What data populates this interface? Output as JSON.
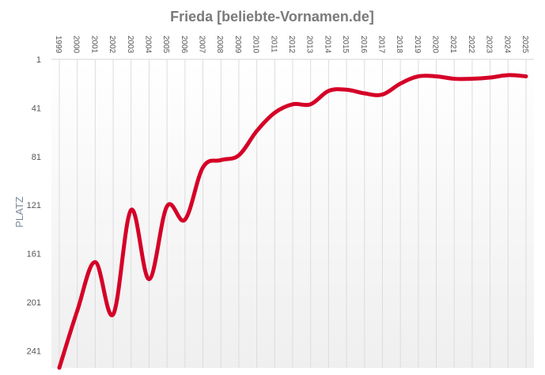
{
  "chart_data": {
    "type": "line",
    "title": "Frieda [beliebte-Vornamen.de]",
    "ylabel": "PLATZ",
    "xlabel": "",
    "x": [
      1999,
      2000,
      2001,
      2002,
      2003,
      2004,
      2005,
      2006,
      2007,
      2008,
      2009,
      2010,
      2011,
      2012,
      2013,
      2014,
      2015,
      2016,
      2017,
      2018,
      2019,
      2020,
      2021,
      2022,
      2023,
      2024,
      2025
    ],
    "series": [
      {
        "values": [
          255,
          208,
          168,
          211,
          125,
          182,
          122,
          133,
          90,
          84,
          80,
          60,
          45,
          38,
          38,
          27,
          26,
          29,
          30,
          21,
          15,
          15,
          17,
          17,
          16,
          14,
          15
        ]
      }
    ],
    "yticks": [
      1,
      41,
      81,
      121,
      161,
      201,
      241
    ],
    "ylim": [
      1,
      252
    ],
    "y_reversed": true,
    "x_tick_position": "top",
    "grid": "vertical",
    "line_color": "#d50027"
  }
}
